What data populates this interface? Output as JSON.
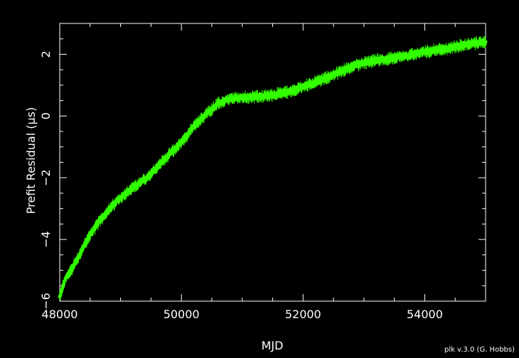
{
  "chart_data": {
    "type": "scatter",
    "title": "",
    "xlabel": "MJD",
    "ylabel": "Prefit Residual (μs)",
    "xlim": [
      48000,
      55000
    ],
    "ylim": [
      -6,
      3
    ],
    "x_ticks": [
      48000,
      50000,
      52000,
      54000
    ],
    "x_tick_labels": [
      "48000",
      "50000",
      "52000",
      "54000"
    ],
    "y_ticks": [
      -6,
      -4,
      -2,
      0,
      2
    ],
    "y_tick_labels": [
      "−6",
      "−4",
      "−2",
      "0",
      "2"
    ],
    "grid": false,
    "background_color": "#000000",
    "axis_color": "#ffffff",
    "marker_color": "#33ff00",
    "series": [
      {
        "x": [
          48000,
          48100,
          48200,
          48300,
          48400,
          48500,
          48600,
          48700,
          48800,
          48900,
          49000,
          49200,
          49400,
          49600,
          49800,
          50000,
          50200,
          50400,
          50600,
          50800,
          51000,
          51200,
          51400,
          51600,
          51800,
          52000,
          52200,
          52400,
          52600,
          52800,
          53000,
          53200,
          53400,
          53600,
          53800,
          54000,
          54200,
          54400,
          54600,
          54800,
          55000
        ],
        "y": [
          -5.85,
          -5.25,
          -4.95,
          -4.6,
          -4.2,
          -3.85,
          -3.55,
          -3.3,
          -3.05,
          -2.85,
          -2.65,
          -2.35,
          -2.05,
          -1.65,
          -1.25,
          -0.85,
          -0.35,
          0.05,
          0.4,
          0.55,
          0.6,
          0.62,
          0.65,
          0.72,
          0.8,
          0.95,
          1.1,
          1.25,
          1.42,
          1.6,
          1.72,
          1.8,
          1.85,
          1.92,
          2.0,
          2.08,
          2.15,
          2.2,
          2.28,
          2.35,
          2.4
        ]
      }
    ]
  },
  "footer_note": "plk v.3.0 (G. Hobbs)"
}
